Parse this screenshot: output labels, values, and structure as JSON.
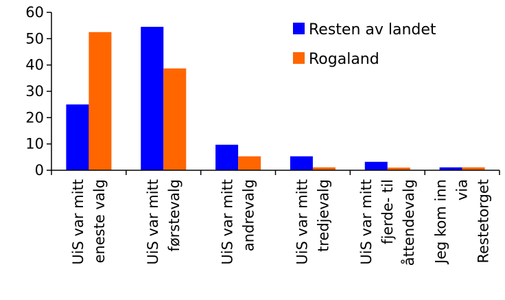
{
  "chart_data": {
    "type": "bar",
    "title": "",
    "xlabel": "",
    "ylabel": "",
    "ylim": [
      0,
      60
    ],
    "yticks": [
      0,
      10,
      20,
      30,
      40,
      50,
      60
    ],
    "grid": false,
    "legend_position": "top-right",
    "categories": [
      [
        "UiS var mitt",
        "eneste valg"
      ],
      [
        "UiS var mitt",
        "førstevalg"
      ],
      [
        "UiS var mitt",
        "andrevalg"
      ],
      [
        "UiS var mitt",
        "tredjevalg"
      ],
      [
        "UiS var mitt",
        "fjerde- til",
        "åttendevalg"
      ],
      [
        "Jeg kom inn",
        "via",
        "Restetorget"
      ]
    ],
    "series": [
      {
        "name": "Resten av landet",
        "color": "#0000FF",
        "values": [
          25,
          54.5,
          9.7,
          5.3,
          3.2,
          1.1
        ]
      },
      {
        "name": "Rogaland",
        "color": "#FF6600",
        "values": [
          52.5,
          38.7,
          5.3,
          1.1,
          1.0,
          1.1
        ]
      }
    ]
  }
}
